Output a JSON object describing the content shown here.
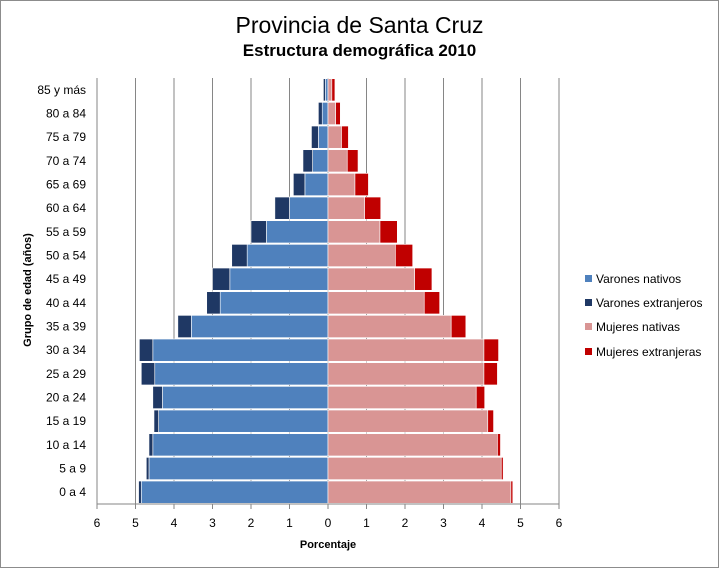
{
  "title": "Provincia de Santa Cruz",
  "subtitle": "Estructura demográfica 2010",
  "chart_data": {
    "type": "bar",
    "orientation": "horizontal-pyramid",
    "title": "Provincia de Santa Cruz",
    "subtitle": "Estructura demográfica 2010",
    "xlabel": "Porcentaje",
    "ylabel": "Grupo de edad (años)",
    "xlim": [
      -6,
      6
    ],
    "x_ticks": [
      "6",
      "5",
      "4",
      "3",
      "2",
      "1",
      "0",
      "1",
      "2",
      "3",
      "4",
      "5",
      "6"
    ],
    "grid": true,
    "legend_position": "right",
    "categories": [
      "0 a 4",
      "5 a 9",
      "10 a 14",
      "15 a 19",
      "20 a 24",
      "25 a 29",
      "30 a 34",
      "35 a 39",
      "40 a 44",
      "45 a 49",
      "50 a 54",
      "55 a 59",
      "60 a 64",
      "65 a 69",
      "70 a 74",
      "75 a 79",
      "80 a 84",
      "85 y más"
    ],
    "series": [
      {
        "name": "Varones nativos",
        "color": "#4f81bd",
        "side": "left",
        "values": [
          4.85,
          4.65,
          4.55,
          4.4,
          4.3,
          4.5,
          4.55,
          3.55,
          2.8,
          2.55,
          2.1,
          1.6,
          1.0,
          0.6,
          0.4,
          0.25,
          0.15,
          0.07
        ]
      },
      {
        "name": "Varones extranjeros",
        "color": "#1f3864",
        "side": "left",
        "values": [
          0.07,
          0.07,
          0.1,
          0.12,
          0.25,
          0.35,
          0.35,
          0.35,
          0.35,
          0.45,
          0.4,
          0.4,
          0.38,
          0.3,
          0.25,
          0.18,
          0.1,
          0.05
        ]
      },
      {
        "name": "Mujeres nativas",
        "color": "#d99594",
        "side": "right",
        "values": [
          4.75,
          4.5,
          4.4,
          4.15,
          3.85,
          4.05,
          4.05,
          3.2,
          2.5,
          2.25,
          1.75,
          1.35,
          0.95,
          0.7,
          0.5,
          0.35,
          0.2,
          0.1
        ]
      },
      {
        "name": "Mujeres extranjeras",
        "color": "#c00000",
        "side": "right",
        "values": [
          0.05,
          0.05,
          0.08,
          0.15,
          0.22,
          0.35,
          0.38,
          0.38,
          0.4,
          0.45,
          0.45,
          0.45,
          0.42,
          0.35,
          0.28,
          0.18,
          0.12,
          0.08
        ]
      }
    ]
  }
}
